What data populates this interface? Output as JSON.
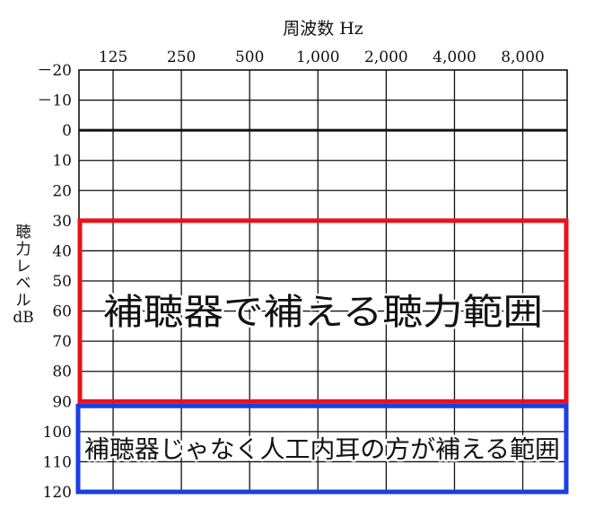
{
  "chart_data": {
    "type": "audiogram",
    "xlabel": "周波数 Hz",
    "ylabel": "聴力レベル dB",
    "ylabel_chars": [
      "聴",
      "力",
      "レ",
      "ベ",
      "ル",
      "dB"
    ],
    "frequencies": [
      "125",
      "250",
      "500",
      "1,000",
      "2,000",
      "4,000",
      "8,000"
    ],
    "y_ticks": [
      "－20",
      "－10",
      "0",
      "10",
      "20",
      "30",
      "40",
      "50",
      "60",
      "70",
      "80",
      "90",
      "100",
      "110",
      "120"
    ],
    "y_values": [
      -20,
      -10,
      0,
      10,
      20,
      30,
      40,
      50,
      60,
      70,
      80,
      90,
      100,
      110,
      120
    ],
    "ylim": [
      -20,
      120
    ],
    "reference_line": 0,
    "grid": true,
    "regions": [
      {
        "label": "補聴器で補える聴力範囲",
        "from_db": 30,
        "to_db": 90,
        "color": "#e8121b"
      },
      {
        "label": "補聴器じゃなく人工内耳の方が補える範囲",
        "from_db": 90,
        "to_db": 120,
        "color": "#1a3ee6"
      }
    ]
  }
}
